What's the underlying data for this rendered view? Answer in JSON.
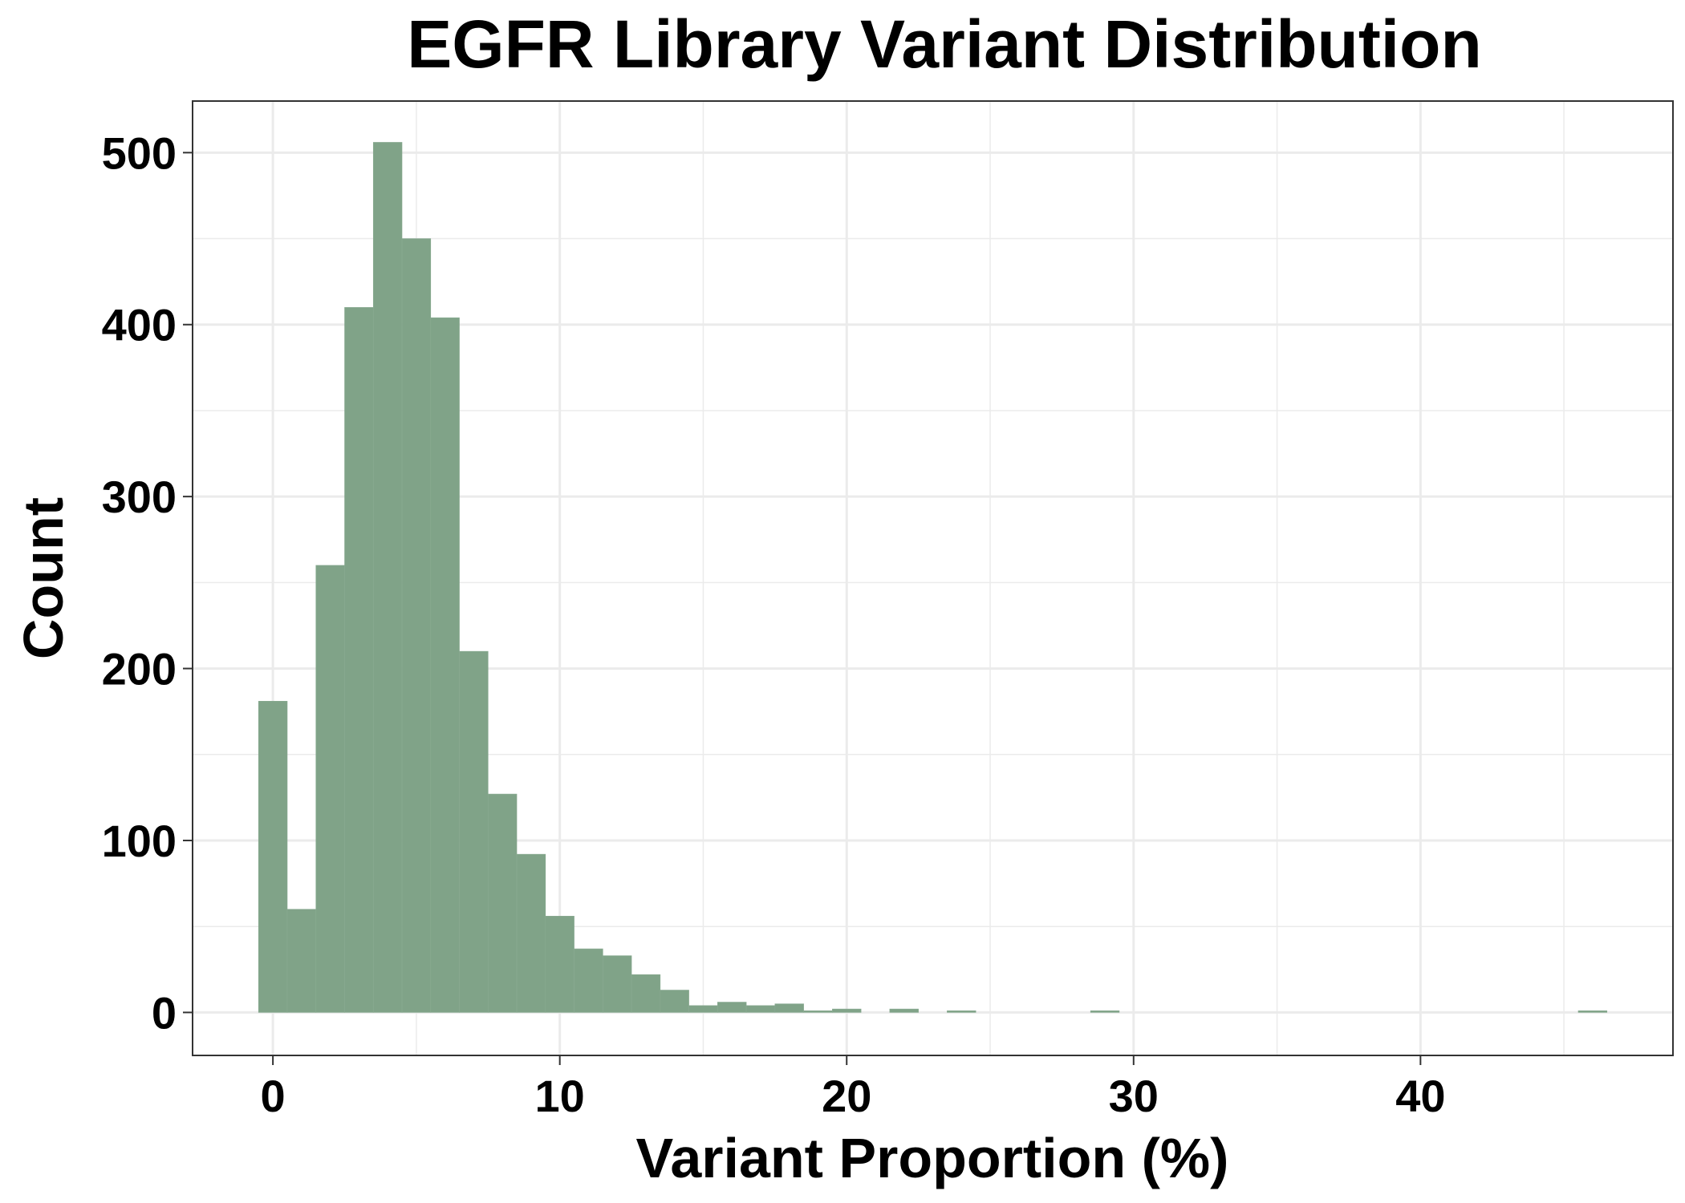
{
  "chart_data": {
    "type": "bar",
    "title": "EGFR Library Variant Distribution",
    "xlabel": "Variant Proportion (%)",
    "ylabel": "Count",
    "bin_width": 1,
    "x_ticks": [
      0,
      10,
      20,
      30,
      40
    ],
    "y_ticks": [
      0,
      100,
      200,
      300,
      400,
      500
    ],
    "xlim": [
      -2.8,
      48.8
    ],
    "ylim": [
      -25,
      530
    ],
    "grid": true,
    "bar_color": "#80a388",
    "bins": [
      {
        "x": 0,
        "count": 181
      },
      {
        "x": 1,
        "count": 60
      },
      {
        "x": 2,
        "count": 260
      },
      {
        "x": 3,
        "count": 410
      },
      {
        "x": 4,
        "count": 506
      },
      {
        "x": 5,
        "count": 450
      },
      {
        "x": 6,
        "count": 404
      },
      {
        "x": 7,
        "count": 210
      },
      {
        "x": 8,
        "count": 127
      },
      {
        "x": 9,
        "count": 92
      },
      {
        "x": 10,
        "count": 56
      },
      {
        "x": 11,
        "count": 37
      },
      {
        "x": 12,
        "count": 33
      },
      {
        "x": 13,
        "count": 22
      },
      {
        "x": 14,
        "count": 13
      },
      {
        "x": 15,
        "count": 4
      },
      {
        "x": 16,
        "count": 6
      },
      {
        "x": 17,
        "count": 4
      },
      {
        "x": 18,
        "count": 5
      },
      {
        "x": 19,
        "count": 1
      },
      {
        "x": 20,
        "count": 2
      },
      {
        "x": 22,
        "count": 2
      },
      {
        "x": 24,
        "count": 1
      },
      {
        "x": 29,
        "count": 1
      },
      {
        "x": 46,
        "count": 1
      }
    ]
  }
}
